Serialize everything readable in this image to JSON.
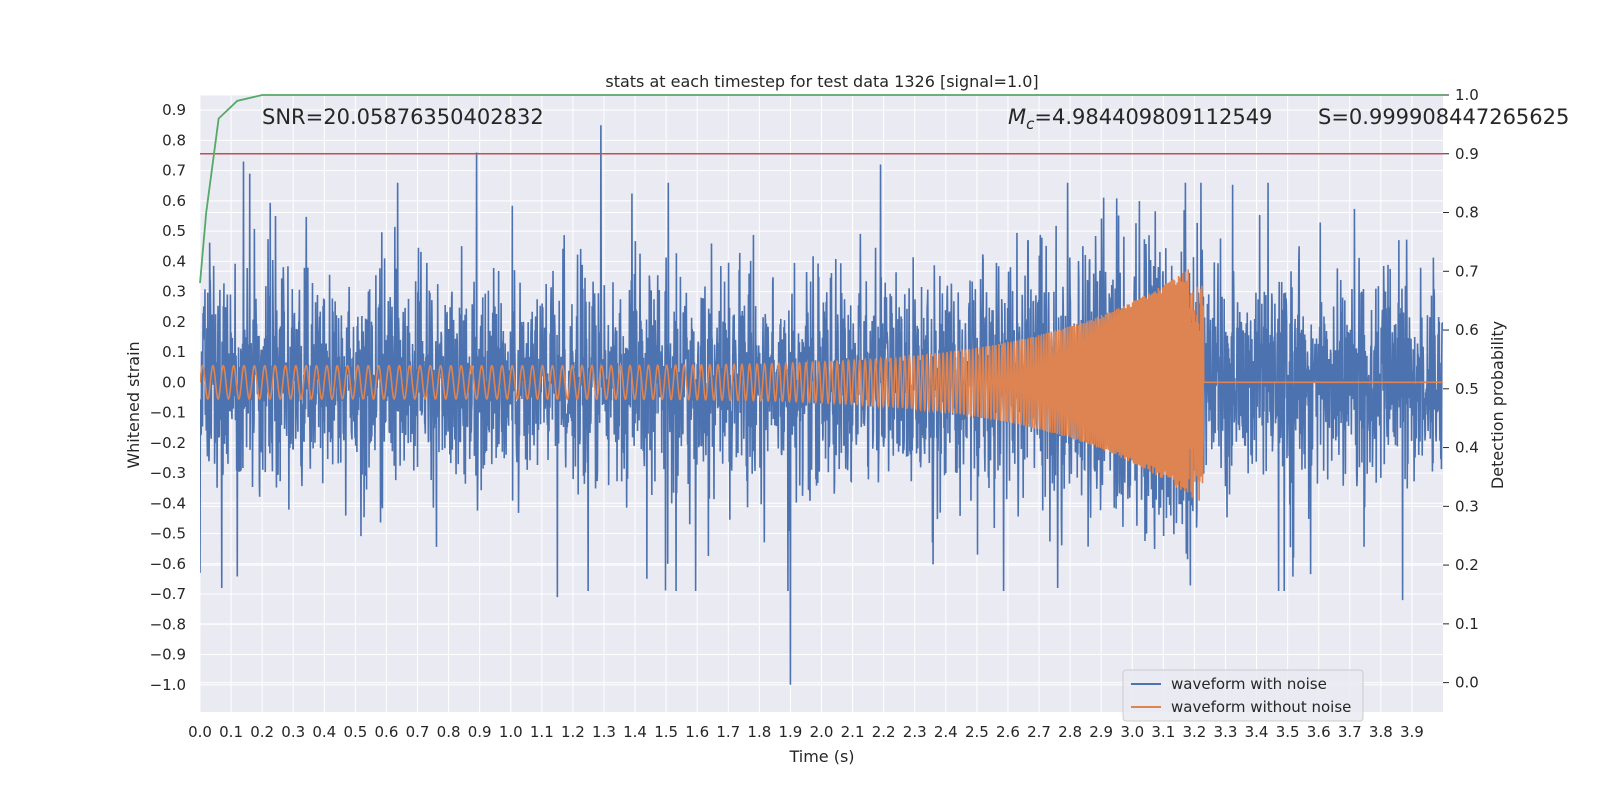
{
  "chart_data": {
    "type": "line",
    "title": "stats at each timestep for test data 1326 [signal=1.0]",
    "xlabel": "Time (s)",
    "ylabel": "Whitened strain",
    "y2label": "Detection probability",
    "xlim": [
      0.0,
      4.0
    ],
    "ylim": [
      -1.09,
      0.95
    ],
    "y2lim": [
      -0.05,
      1.0
    ],
    "x_ticks": [
      0.0,
      0.1,
      0.2,
      0.3,
      0.4,
      0.5,
      0.6,
      0.7,
      0.8,
      0.9,
      1.0,
      1.1,
      1.2,
      1.3,
      1.4,
      1.5,
      1.6,
      1.7,
      1.8,
      1.9,
      2.0,
      2.1,
      2.2,
      2.3,
      2.4,
      2.5,
      2.6,
      2.7,
      2.8,
      2.9,
      3.0,
      3.1,
      3.2,
      3.3,
      3.4,
      3.5,
      3.6,
      3.7,
      3.8,
      3.9
    ],
    "x_tick_labels": [
      "0.0",
      "0.1",
      "0.2",
      "0.3",
      "0.4",
      "0.5",
      "0.6",
      "0.7",
      "0.8",
      "0.9",
      "1.0",
      "1.1",
      "1.2",
      "1.3",
      "1.4",
      "1.5",
      "1.6",
      "1.7",
      "1.8",
      "1.9",
      "2.0",
      "2.1",
      "2.2",
      "2.3",
      "2.4",
      "2.5",
      "2.6",
      "2.7",
      "2.8",
      "2.9",
      "3.0",
      "3.1",
      "3.2",
      "3.3",
      "3.4",
      "3.5",
      "3.6",
      "3.7",
      "3.8",
      "3.9"
    ],
    "y_ticks": [
      0.9,
      0.8,
      0.7,
      0.6,
      0.5,
      0.4,
      0.3,
      0.2,
      0.1,
      0.0,
      -0.1,
      -0.2,
      -0.3,
      -0.4,
      -0.5,
      -0.6,
      -0.7,
      -0.8,
      -0.9,
      -1.0
    ],
    "y_tick_labels": [
      "0.9",
      "0.8",
      "0.7",
      "0.6",
      "0.5",
      "0.4",
      "0.3",
      "0.2",
      "0.1",
      "0.0",
      "−0.1",
      "−0.2",
      "−0.3",
      "−0.4",
      "−0.5",
      "−0.6",
      "−0.7",
      "−0.8",
      "−0.9",
      "−1.0"
    ],
    "y2_ticks": [
      1.0,
      0.9,
      0.8,
      0.7,
      0.6,
      0.5,
      0.4,
      0.3,
      0.2,
      0.1,
      0.0
    ],
    "y2_tick_labels": [
      "1.0",
      "0.9",
      "0.8",
      "0.7",
      "0.6",
      "0.5",
      "0.4",
      "0.3",
      "0.2",
      "0.1",
      "0.0"
    ],
    "grid": true,
    "legend_position": "bottom-right",
    "annotations": {
      "snr": "SNR=20.05876350402832",
      "mc_symbol": "M",
      "mc_sub": "c",
      "mc_value": "=4.984409809112549",
      "s": "S=0.999908447265625"
    },
    "series": [
      {
        "name": "waveform with noise",
        "color": "#4c72b0",
        "description_values": {
          "envelope_typical": 0.35,
          "peak_points": [
            [
              1.29,
              0.85
            ],
            [
              0.89,
              0.76
            ],
            [
              0.14,
              0.73
            ],
            [
              0.16,
              0.69
            ],
            [
              2.19,
              0.72
            ],
            [
              1.9,
              -1.0
            ],
            [
              3.87,
              -0.72
            ],
            [
              0.07,
              -0.68
            ],
            [
              1.15,
              -0.71
            ],
            [
              2.76,
              -0.68
            ],
            [
              0.0,
              -0.63
            ]
          ]
        }
      },
      {
        "name": "waveform without noise",
        "color": "#dd8452",
        "chirp": {
          "t_start": 0.0,
          "t_merge": 3.23,
          "amp_start": 0.055,
          "amp_merge": 0.41,
          "freq_start": 30,
          "freq_merge": 250
        }
      },
      {
        "name": "detection probability",
        "color": "#55a868",
        "axis": "right",
        "x": [
          0.0,
          0.02,
          0.06,
          0.12,
          0.2,
          0.3,
          4.0
        ],
        "y": [
          0.68,
          0.8,
          0.96,
          0.99,
          1.0,
          1.0,
          1.0
        ]
      },
      {
        "name": "threshold",
        "color": "#c44e52",
        "axis": "right",
        "y": 0.9
      }
    ]
  }
}
